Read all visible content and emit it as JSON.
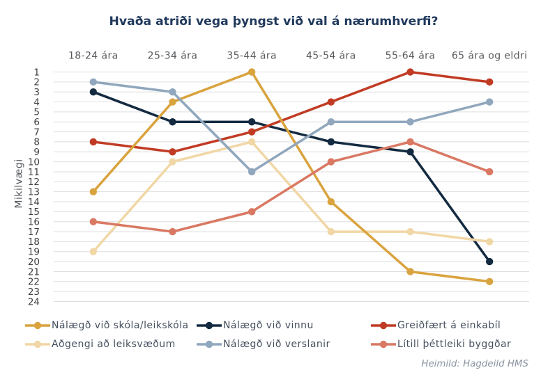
{
  "chart_data": {
    "type": "line",
    "title": "Hvaða atriði vega þyngst við val á nærumhverfi?",
    "ylabel": "Mikilvægi",
    "xlabel": "",
    "categories": [
      "18-24 ára",
      "25-34 ára",
      "35-44 ára",
      "45-54 ára",
      "55-64 ára",
      "65 ára og eldri"
    ],
    "series": [
      {
        "name": "Nálægð við skóla/leikskóla",
        "color": "#d9a33e",
        "values": [
          13,
          4,
          1,
          14,
          21,
          22
        ],
        "z": 3
      },
      {
        "name": "Nálægð við vinnu",
        "color": "#132a40",
        "values": [
          3,
          6,
          6,
          8,
          9,
          20
        ],
        "z": 0
      },
      {
        "name": "Greiðfært á einkabíl",
        "color": "#c13b24",
        "values": [
          8,
          9,
          7,
          4,
          1,
          2
        ],
        "z": 1
      },
      {
        "name": "Aðgengi að leiksvæðum",
        "color": "#f1d7a6",
        "values": [
          19,
          10,
          8,
          17,
          17,
          18
        ],
        "z": 2
      },
      {
        "name": "Nálægð við verslanir",
        "color": "#90a7bd",
        "values": [
          2,
          3,
          11,
          6,
          6,
          4
        ],
        "z": 4
      },
      {
        "name": "Lítill þéttleiki byggðar",
        "color": "#d97863",
        "values": [
          16,
          17,
          15,
          10,
          8,
          11
        ],
        "z": 5
      }
    ],
    "yticks": [
      1,
      2,
      3,
      4,
      5,
      6,
      7,
      8,
      9,
      10,
      11,
      12,
      13,
      14,
      15,
      16,
      17,
      18,
      19,
      20,
      21,
      22,
      23,
      24
    ],
    "ylim": [
      1,
      24
    ],
    "y_axis_reversed": true,
    "grid": "horizontal",
    "legend_position": "bottom",
    "source": "Heimild: Hagdeild HMS"
  }
}
